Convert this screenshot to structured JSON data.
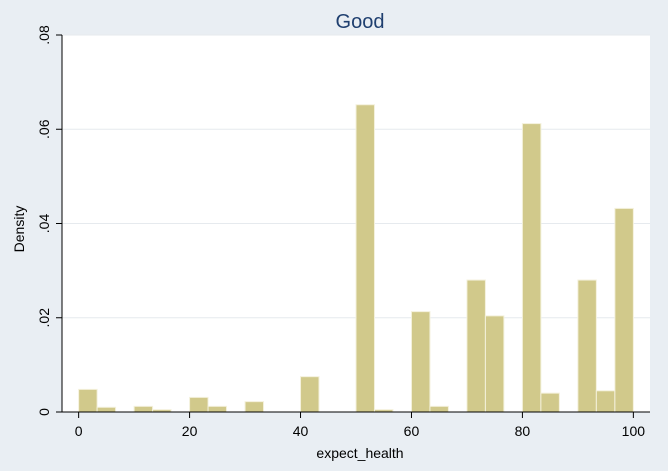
{
  "chart_data": {
    "type": "bar",
    "title": "Good",
    "xlabel": "expect_health",
    "ylabel": "Density",
    "xlim": [
      -3,
      103
    ],
    "ylim": [
      0,
      0.08
    ],
    "xticks": [
      0,
      20,
      40,
      60,
      80,
      100
    ],
    "xtick_labels": [
      "0",
      "20",
      "40",
      "60",
      "80",
      "100"
    ],
    "yticks": [
      0,
      0.02,
      0.04,
      0.06,
      0.08
    ],
    "ytick_labels": [
      "0",
      ".02",
      ".04",
      ".06",
      ".08"
    ],
    "grid": "horizontal",
    "bin_width": 3.33,
    "bins": [
      {
        "x0": 0.0,
        "density": 0.0048
      },
      {
        "x0": 3.33,
        "density": 0.001
      },
      {
        "x0": 10.0,
        "density": 0.0012
      },
      {
        "x0": 13.33,
        "density": 0.0005
      },
      {
        "x0": 20.0,
        "density": 0.0031
      },
      {
        "x0": 23.33,
        "density": 0.0012
      },
      {
        "x0": 30.0,
        "density": 0.0022
      },
      {
        "x0": 40.0,
        "density": 0.0075
      },
      {
        "x0": 50.0,
        "density": 0.0652
      },
      {
        "x0": 53.33,
        "density": 0.0005
      },
      {
        "x0": 60.0,
        "density": 0.0213
      },
      {
        "x0": 63.33,
        "density": 0.0012
      },
      {
        "x0": 70.0,
        "density": 0.028
      },
      {
        "x0": 73.33,
        "density": 0.0204
      },
      {
        "x0": 80.0,
        "density": 0.0612
      },
      {
        "x0": 83.33,
        "density": 0.004
      },
      {
        "x0": 90.0,
        "density": 0.028
      },
      {
        "x0": 93.33,
        "density": 0.0045
      },
      {
        "x0": 96.67,
        "density": 0.0432
      }
    ],
    "colors": {
      "bar_fill": "#d1c98b",
      "bar_stroke": "#f4f1dc",
      "plot_bg": "#ffffff",
      "outer_bg": "#e9eef3",
      "grid": "#e6eaee",
      "title": "#1f3f6f"
    }
  }
}
